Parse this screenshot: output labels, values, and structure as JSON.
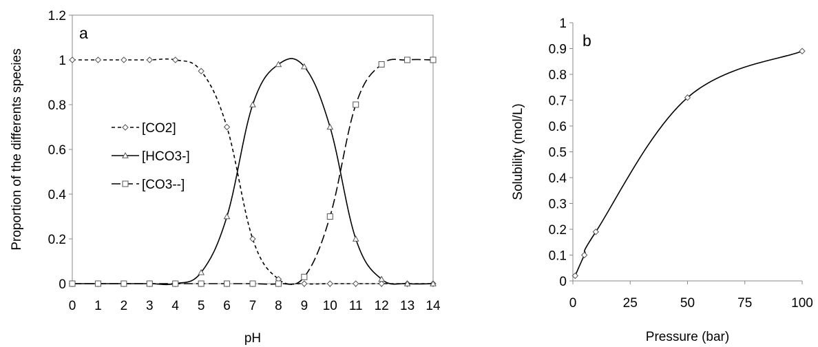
{
  "chart_data": [
    {
      "type": "line",
      "panel_label": "a",
      "xlabel": "pH",
      "ylabel": "Proportion of the differents species",
      "xlim": [
        0,
        14
      ],
      "ylim": [
        0,
        1.2
      ],
      "x_ticks": [
        "0",
        "1",
        "2",
        "3",
        "4",
        "5",
        "6",
        "7",
        "8",
        "9",
        "10",
        "11",
        "12",
        "13",
        "14"
      ],
      "y_ticks": [
        "0",
        "0.2",
        "0.4",
        "0.6",
        "0.8",
        "1",
        "1.2"
      ],
      "grid": false,
      "legend_position": "left",
      "x": [
        0,
        1,
        2,
        3,
        4,
        5,
        6,
        7,
        8,
        9,
        10,
        11,
        12,
        13,
        14
      ],
      "series": [
        {
          "name": "[CO2]",
          "marker": "diamond",
          "line": "short-dash",
          "values": [
            1,
            1,
            1,
            1,
            1,
            0.95,
            0.7,
            0.2,
            0.02,
            0,
            0,
            0,
            0,
            0,
            0
          ]
        },
        {
          "name": "[HCO3-]",
          "marker": "triangle",
          "line": "solid",
          "values": [
            0,
            0,
            0,
            0,
            0,
            0.05,
            0.3,
            0.8,
            0.98,
            0.97,
            0.7,
            0.2,
            0.02,
            0,
            0
          ]
        },
        {
          "name": "[CO3--]",
          "marker": "square",
          "line": "long-dash",
          "values": [
            0,
            0,
            0,
            0,
            0,
            0,
            0,
            0,
            0,
            0.03,
            0.3,
            0.8,
            0.98,
            1,
            1
          ]
        }
      ]
    },
    {
      "type": "line",
      "panel_label": "b",
      "xlabel": "Pressure (bar)",
      "ylabel": "Solubility (mol/L)",
      "xlim": [
        0,
        100
      ],
      "ylim": [
        0,
        1
      ],
      "x_ticks": [
        "0",
        "25",
        "50",
        "75",
        "100"
      ],
      "y_ticks": [
        "0",
        "0.1",
        "0.2",
        "0.3",
        "0.4",
        "0.5",
        "0.6",
        "0.7",
        "0.8",
        "0.9",
        "1"
      ],
      "grid": false,
      "series": [
        {
          "marker": "diamond",
          "line": "solid",
          "x": [
            1,
            5,
            10,
            50,
            100
          ],
          "values": [
            0.02,
            0.1,
            0.19,
            0.71,
            0.89
          ]
        }
      ]
    }
  ]
}
